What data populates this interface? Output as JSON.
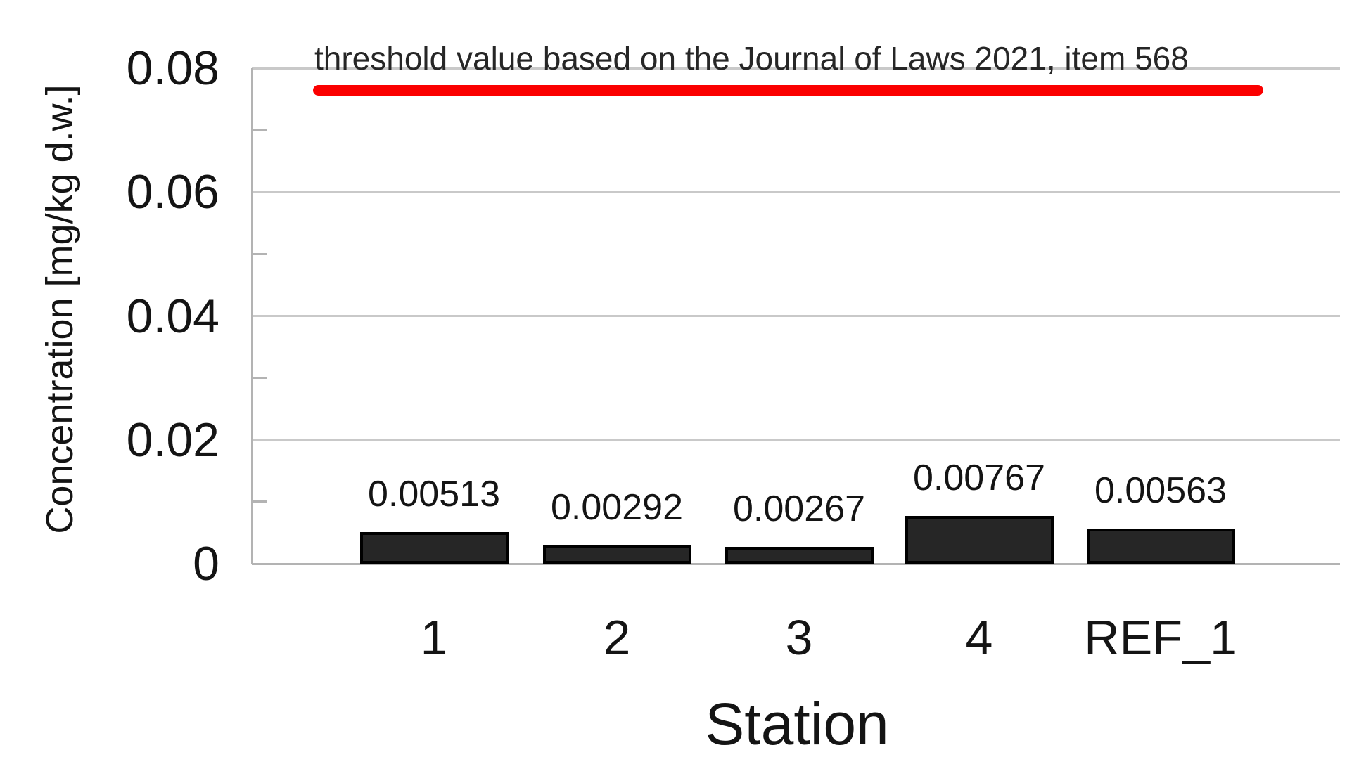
{
  "chart_data": {
    "type": "bar",
    "title": "",
    "categories": [
      "1",
      "2",
      "3",
      "4",
      "REF_1"
    ],
    "values": [
      0.00513,
      0.00292,
      0.00267,
      0.00767,
      0.00563
    ],
    "value_labels": [
      "0.00513",
      "0.00292",
      "0.00267",
      "0.00767",
      "0.00563"
    ],
    "xlabel": "Station",
    "ylabel": "Concentration [mg/kg d.w.]",
    "ylim": [
      0,
      0.08
    ],
    "yticks": [
      0,
      0.02,
      0.04,
      0.06,
      0.08
    ],
    "ytick_labels": [
      "0",
      "0.02",
      "0.04",
      "0.06",
      "0.08"
    ],
    "minor_yticks": [
      0.01,
      0.03,
      0.05,
      0.07
    ],
    "grid": "horizontal-major",
    "legend": "none",
    "bar_color": "#262626",
    "bar_border_color": "#000000",
    "threshold": {
      "label": "threshold value based on the Journal of Laws 2021, item 568",
      "value": 0.0765,
      "color": "#fb0000"
    }
  },
  "colors": {
    "background": "#ffffff",
    "gridline": "#c9c9c9",
    "axis": "#b3b3b3",
    "text": "#141414"
  }
}
